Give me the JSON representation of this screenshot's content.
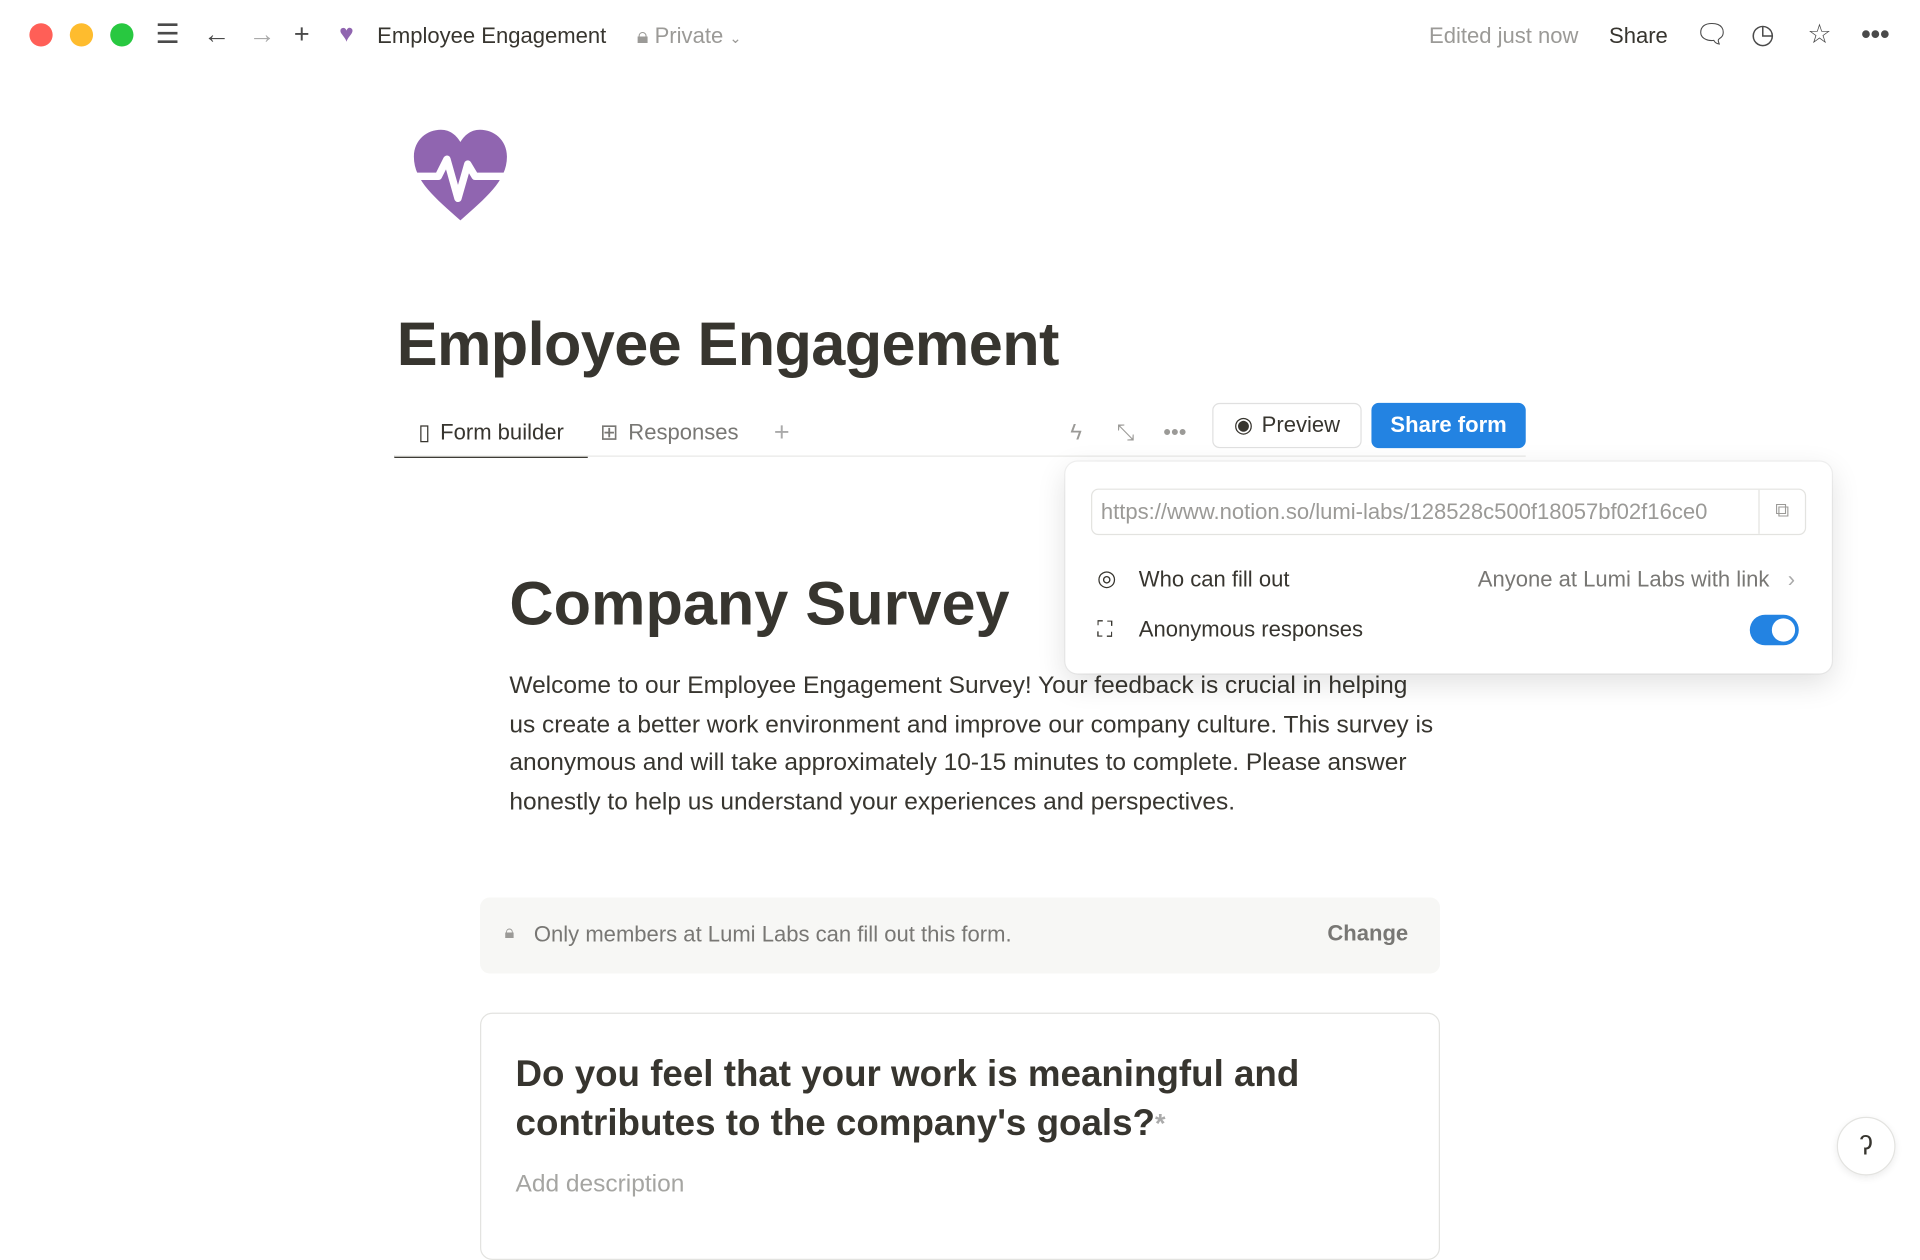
{
  "window": {
    "traffic_lights": [
      "#ff5f57",
      "#febc2e",
      "#28c840"
    ]
  },
  "topbar": {
    "page_title": "Employee Engagement",
    "privacy": "Private",
    "edited": "Edited just now",
    "share": "Share",
    "icons": [
      "menu-icon",
      "back-arrow-icon",
      "forward-arrow-icon",
      "plus-icon",
      "heart-pulse-icon",
      "lock-icon",
      "comment-icon",
      "clock-icon",
      "star-icon",
      "more-icon"
    ]
  },
  "page": {
    "title": "Employee Engagement",
    "icon_color": "#9065b0",
    "tabs": [
      {
        "label": "Form builder",
        "active": true
      },
      {
        "label": "Responses",
        "active": false
      }
    ],
    "preview_label": "Preview",
    "share_form_label": "Share form",
    "accent": "#2383e2"
  },
  "share_popup": {
    "url": "https://www.notion.so/lumi-labs/128528c500f18057bf02f16ce0",
    "who_label": "Who can fill out",
    "who_value": "Anyone at Lumi Labs with link",
    "anon_label": "Anonymous responses",
    "anon_enabled": true
  },
  "form": {
    "title": "Company Survey",
    "description": "Welcome to our Employee Engagement Survey! Your feedback is crucial in helping us create a better work environment and improve our company culture. This survey is anonymous and will take approximately 10-15 minutes to complete. Please answer honestly to help us understand your experiences and perspectives.",
    "notice": "Only members at Lumi Labs can fill out this form.",
    "notice_action": "Change",
    "question": "Do you feel that your work is meaningful and contributes to the company's goals?",
    "required_mark": "*",
    "description_placeholder": "Add description"
  }
}
